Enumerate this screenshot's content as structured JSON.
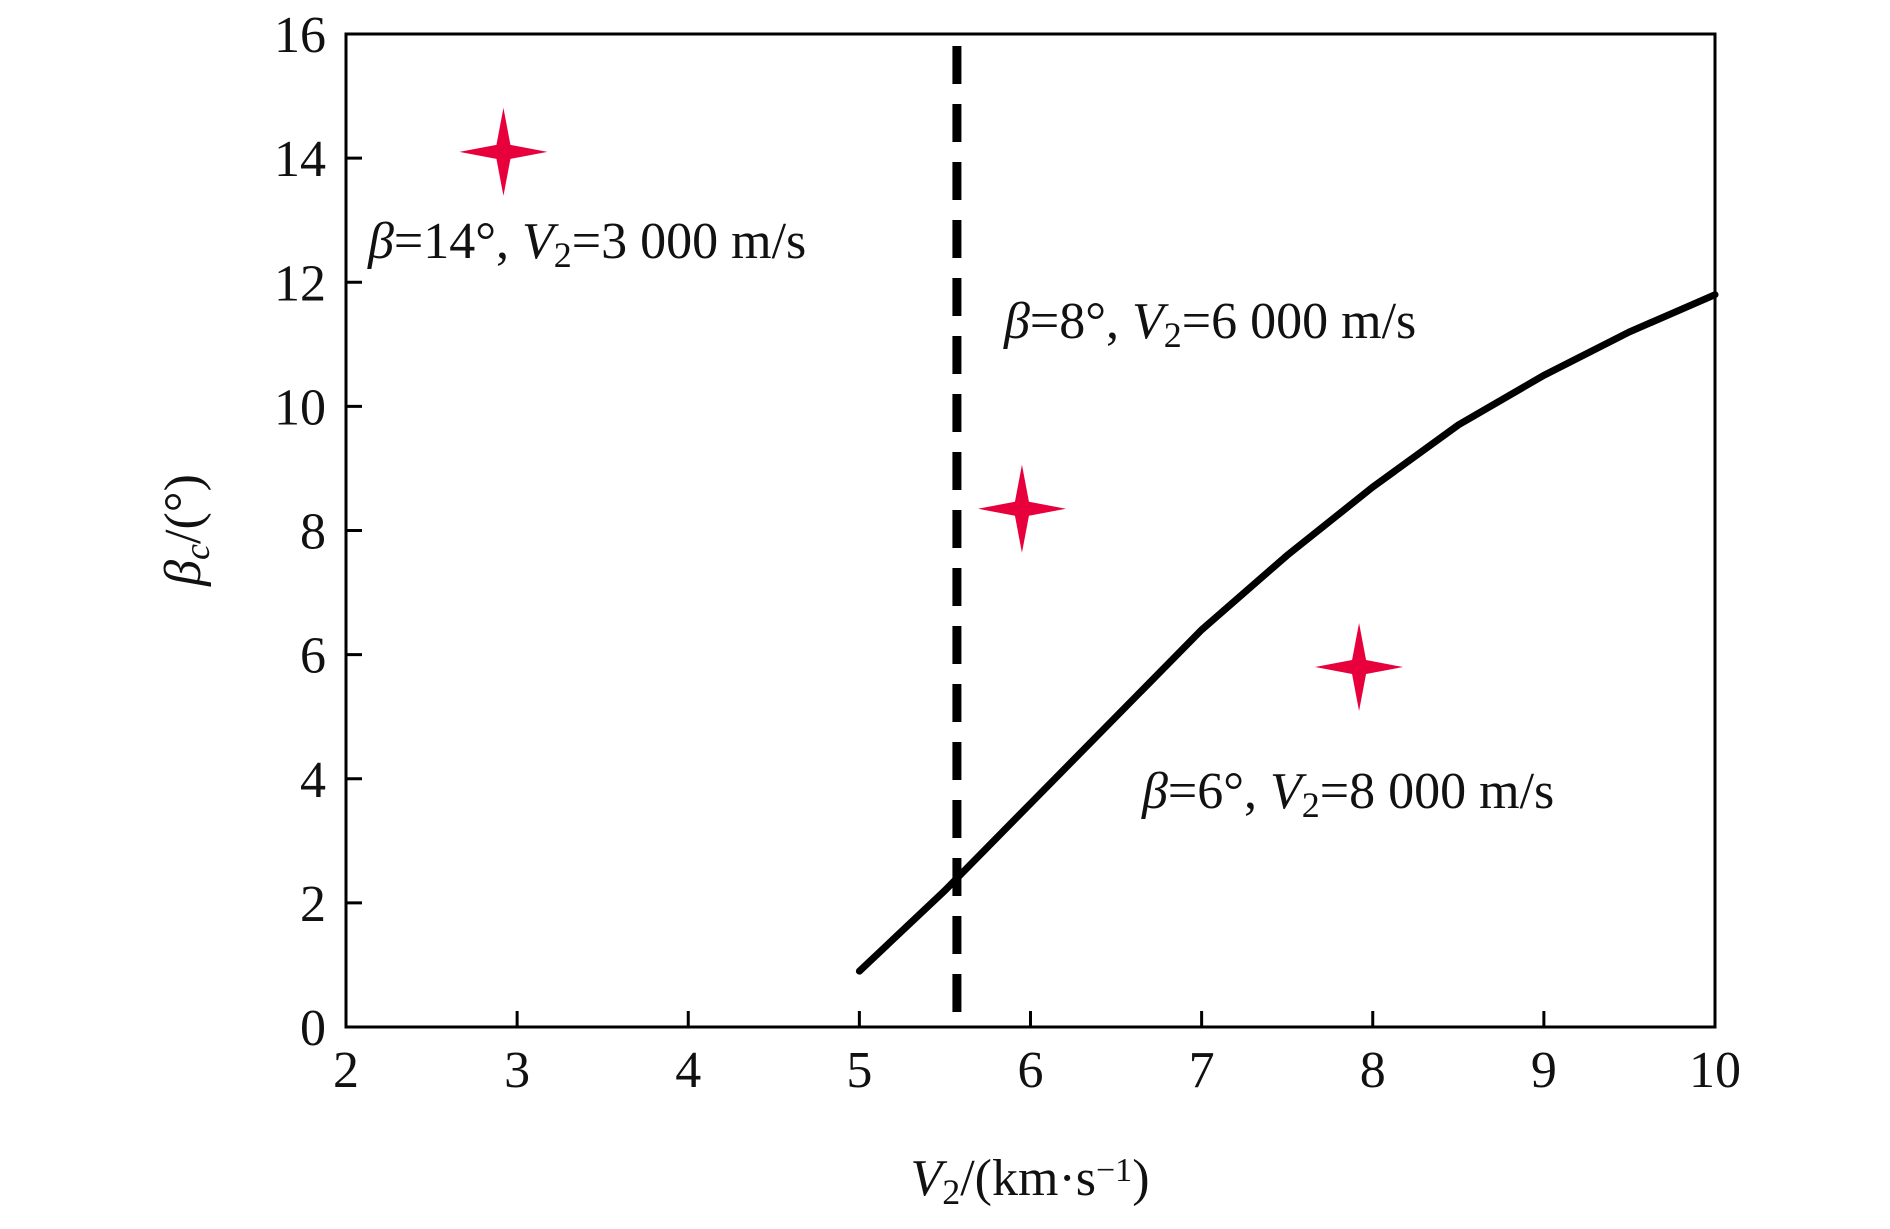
{
  "chart_data": {
    "type": "line",
    "xlim": [
      2,
      10
    ],
    "ylim": [
      0,
      16
    ],
    "xticks": [
      2,
      3,
      4,
      5,
      6,
      7,
      8,
      9,
      10
    ],
    "yticks": [
      0,
      2,
      4,
      6,
      8,
      10,
      12,
      14,
      16
    ],
    "xlabel": [
      {
        "text": "V",
        "italic": true
      },
      {
        "text": "2",
        "sub": true
      },
      {
        "text": "/(km·s"
      },
      {
        "text": "−1",
        "sup": true
      },
      {
        "text": ")"
      }
    ],
    "ylabel": [
      {
        "text": "β",
        "italic": true
      },
      {
        "text": "c",
        "sub": true,
        "italic": true
      },
      {
        "text": "/(°)"
      }
    ],
    "vline": {
      "x": 5.57,
      "color": "#000000",
      "dashed": true
    },
    "series": [
      {
        "type": "line",
        "color": "#000000",
        "x": [
          5,
          5.5,
          6,
          6.5,
          7,
          7.5,
          8,
          8.5,
          9,
          9.5,
          10
        ],
        "values": [
          0.9,
          2.2,
          3.6,
          5.0,
          6.4,
          7.6,
          8.7,
          9.7,
          10.5,
          11.2,
          11.8
        ]
      },
      {
        "type": "scatter",
        "color": "#e8003d",
        "x": [
          2.92,
          5.95,
          7.92
        ],
        "values": [
          14.1,
          8.35,
          5.8
        ]
      }
    ],
    "annotations": [
      [
        {
          "text": "β",
          "italic": true
        },
        {
          "text": "=14°, "
        },
        {
          "text": "V",
          "italic": true
        },
        {
          "text": "2",
          "sub": true
        },
        {
          "text": "=3 000 m/s"
        }
      ],
      [
        {
          "text": "β",
          "italic": true
        },
        {
          "text": "=8°, "
        },
        {
          "text": "V",
          "italic": true
        },
        {
          "text": "2",
          "sub": true
        },
        {
          "text": "=6 000 m/s"
        }
      ],
      [
        {
          "text": "β",
          "italic": true
        },
        {
          "text": "=6°, "
        },
        {
          "text": "V",
          "italic": true
        },
        {
          "text": "2",
          "sub": true
        },
        {
          "text": "=8 000 m/s"
        }
      ]
    ]
  }
}
